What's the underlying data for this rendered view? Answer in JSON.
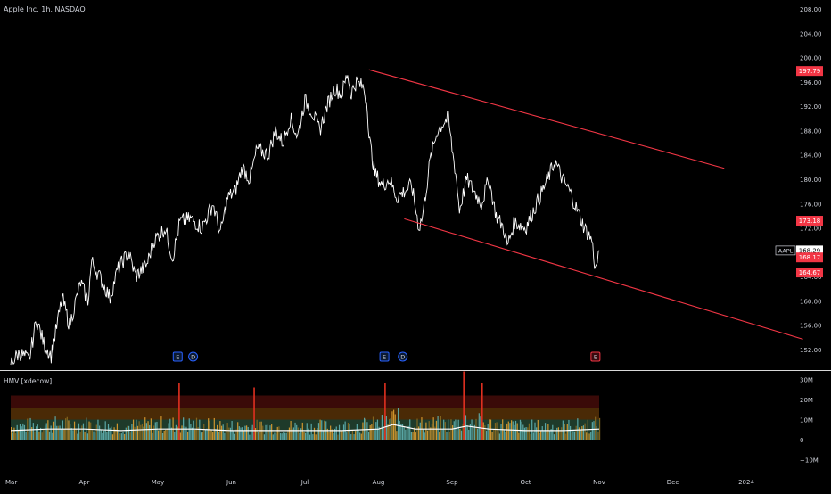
{
  "header": {
    "symbol_title": "Apple Inc, 1h, NASDAQ"
  },
  "indicator": {
    "label": "HMV [xdecow]",
    "axis_labels": [
      "30M",
      "20M",
      "10M",
      "0",
      "−10M"
    ]
  },
  "price_axis": {
    "ticks": [
      "208.00",
      "204.00",
      "200.00",
      "196.00",
      "192.00",
      "188.00",
      "184.00",
      "180.00",
      "176.00",
      "172.00",
      "168.00",
      "164.00",
      "160.00",
      "156.00",
      "152.00"
    ]
  },
  "price_tags": [
    {
      "label": "197.79",
      "value": 197.79,
      "color": "#f23645"
    },
    {
      "label": "173.18",
      "value": 173.18,
      "color": "#f23645"
    },
    {
      "label": "AAPL",
      "value": 168.29,
      "color": "#ffffff"
    },
    {
      "label": "168.29",
      "value": 168.29,
      "color": "#ffffff"
    },
    {
      "label": "168.17",
      "value": 168.17,
      "color": "#f23645"
    },
    {
      "label": "164.67",
      "value": 164.67,
      "color": "#f23645"
    }
  ],
  "time_axis": {
    "labels": [
      "Mar",
      "Apr",
      "May",
      "Jun",
      "Jul",
      "Aug",
      "Sep",
      "Oct",
      "Nov",
      "Dec",
      "2024"
    ]
  },
  "markers": [
    {
      "label": "E",
      "month_pos": 2.27,
      "color": "#2962ff"
    },
    {
      "label": "D",
      "month_pos": 2.48,
      "color": "#2962ff"
    },
    {
      "label": "E",
      "month_pos": 5.08,
      "color": "#2962ff"
    },
    {
      "label": "D",
      "month_pos": 5.33,
      "color": "#2962ff"
    },
    {
      "label": "E",
      "month_pos": 7.95,
      "color": "#f23645"
    }
  ],
  "chart_data": {
    "type": "line",
    "title": "Apple Inc, 1h, NASDAQ",
    "x_unit": "months since Mar 1 2023",
    "ylim": [
      149,
      210
    ],
    "price_path": [
      [
        0.0,
        149.8
      ],
      [
        0.12,
        151.5
      ],
      [
        0.25,
        150.2
      ],
      [
        0.35,
        157
      ],
      [
        0.45,
        153
      ],
      [
        0.55,
        151
      ],
      [
        0.7,
        160.5
      ],
      [
        0.8,
        156
      ],
      [
        0.95,
        163
      ],
      [
        1.05,
        160
      ],
      [
        1.1,
        166.5
      ],
      [
        1.25,
        163
      ],
      [
        1.35,
        160.5
      ],
      [
        1.45,
        165
      ],
      [
        1.6,
        168
      ],
      [
        1.7,
        164
      ],
      [
        1.85,
        166
      ],
      [
        1.95,
        170
      ],
      [
        2.1,
        172
      ],
      [
        2.2,
        167
      ],
      [
        2.3,
        173
      ],
      [
        2.45,
        173.5
      ],
      [
        2.6,
        172
      ],
      [
        2.75,
        176
      ],
      [
        2.85,
        171
      ],
      [
        2.95,
        177
      ],
      [
        3.05,
        178
      ],
      [
        3.15,
        182
      ],
      [
        3.25,
        180
      ],
      [
        3.35,
        185
      ],
      [
        3.5,
        184
      ],
      [
        3.6,
        188
      ],
      [
        3.7,
        186
      ],
      [
        3.8,
        190
      ],
      [
        3.9,
        187
      ],
      [
        4.0,
        193
      ],
      [
        4.1,
        191
      ],
      [
        4.2,
        188
      ],
      [
        4.3,
        192
      ],
      [
        4.4,
        195
      ],
      [
        4.5,
        194
      ],
      [
        4.58,
        197.5
      ],
      [
        4.62,
        194
      ],
      [
        4.7,
        196
      ],
      [
        4.8,
        195
      ],
      [
        4.85,
        192
      ],
      [
        4.87,
        187
      ],
      [
        4.95,
        181
      ],
      [
        5.05,
        179
      ],
      [
        5.15,
        180
      ],
      [
        5.25,
        177
      ],
      [
        5.35,
        178
      ],
      [
        5.45,
        179
      ],
      [
        5.55,
        172
      ],
      [
        5.6,
        174
      ],
      [
        5.7,
        183
      ],
      [
        5.8,
        188
      ],
      [
        5.9,
        189.5
      ],
      [
        5.95,
        190
      ],
      [
        6.0,
        185
      ],
      [
        6.05,
        181
      ],
      [
        6.1,
        175
      ],
      [
        6.2,
        180
      ],
      [
        6.3,
        178
      ],
      [
        6.4,
        176
      ],
      [
        6.5,
        180
      ],
      [
        6.6,
        174
      ],
      [
        6.7,
        172
      ],
      [
        6.75,
        169
      ],
      [
        6.85,
        173
      ],
      [
        7.0,
        172
      ],
      [
        7.15,
        176
      ],
      [
        7.3,
        180
      ],
      [
        7.4,
        183
      ],
      [
        7.5,
        180
      ],
      [
        7.6,
        178
      ],
      [
        7.7,
        175
      ],
      [
        7.8,
        172
      ],
      [
        7.9,
        170
      ],
      [
        7.95,
        165
      ],
      [
        8.0,
        168.3
      ]
    ],
    "volume_profile": [
      [
        0.0,
        6
      ],
      [
        0.5,
        7
      ],
      [
        1.0,
        7
      ],
      [
        1.5,
        6
      ],
      [
        2.0,
        7
      ],
      [
        2.5,
        7
      ],
      [
        3.0,
        6
      ],
      [
        3.5,
        6
      ],
      [
        4.0,
        6
      ],
      [
        4.5,
        6
      ],
      [
        5.0,
        7
      ],
      [
        5.2,
        10
      ],
      [
        5.5,
        7
      ],
      [
        6.0,
        7
      ],
      [
        6.2,
        9
      ],
      [
        6.5,
        7
      ],
      [
        7.0,
        6
      ],
      [
        7.5,
        6
      ],
      [
        8.0,
        7
      ]
    ],
    "volume_spikes": [
      {
        "month_pos": 2.28,
        "value": 28
      },
      {
        "month_pos": 3.3,
        "value": 26
      },
      {
        "month_pos": 5.08,
        "value": 28
      },
      {
        "month_pos": 6.15,
        "value": 34
      },
      {
        "month_pos": 6.4,
        "value": 28
      }
    ],
    "trendlines": [
      {
        "from": [
          4.87,
          198
        ],
        "to": [
          9.7,
          181.8
        ],
        "color": "#f23645"
      },
      {
        "from": [
          5.35,
          173.5
        ],
        "to": [
          10.77,
          153.7
        ],
        "color": "#f23645"
      }
    ]
  }
}
